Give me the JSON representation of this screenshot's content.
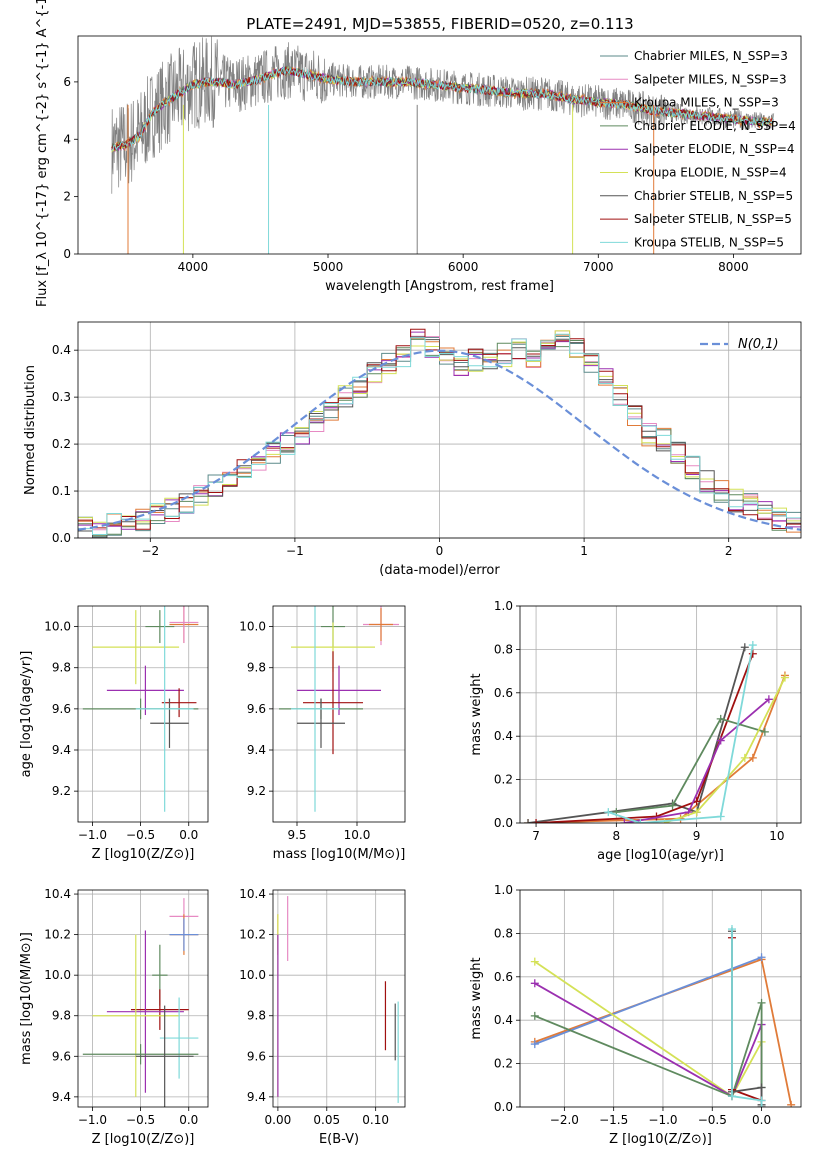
{
  "figure": {
    "title": "PLATE=2491, MJD=53855, FIBERID=0520, z=0.113"
  },
  "chart_data": [
    {
      "id": "spectrum",
      "type": "line",
      "xlabel": "wavelength [Angstrom, rest frame]",
      "ylabel": "Flux [f_λ 10^{-17} erg cm^{-2} s^{-1} A^{-1}]",
      "xlim": [
        3150,
        8500
      ],
      "ylim": [
        0,
        7.6
      ],
      "xticks": [
        4000,
        5000,
        6000,
        7000,
        8000
      ],
      "yticks": [
        0,
        2,
        4,
        6
      ],
      "grid": false,
      "legend_position": "top-right",
      "series": [
        {
          "name": "Chabrier MILES, N_SSP=3",
          "color": "#5b8a8a"
        },
        {
          "name": "Salpeter MILES, N_SSP=3",
          "color": "#e78ac3"
        },
        {
          "name": "Kroupa MILES, N_SSP=3",
          "color": "#e07b39"
        },
        {
          "name": "Chabrier ELODIE, N_SSP=4",
          "color": "#5f8a5f"
        },
        {
          "name": "Salpeter ELODIE, N_SSP=4",
          "color": "#9b30b0"
        },
        {
          "name": "Kroupa ELODIE, N_SSP=4",
          "color": "#d4e157"
        },
        {
          "name": "Chabrier STELIB, N_SSP=5",
          "color": "#555555"
        },
        {
          "name": "Salpeter STELIB, N_SSP=5",
          "color": "#a01010"
        },
        {
          "name": "Kroupa STELIB, N_SSP=5",
          "color": "#7fd9d9"
        }
      ],
      "continuum": {
        "x": [
          3400,
          3500,
          3600,
          3700,
          3800,
          3900,
          4000,
          4100,
          4200,
          4300,
          4400,
          4500,
          4600,
          4700,
          4800,
          4900,
          5000,
          5200,
          5400,
          5600,
          5800,
          6000,
          6200,
          6400,
          6600,
          6800,
          7000,
          7200,
          7400,
          7600,
          7800,
          8000,
          8200,
          8300
        ],
        "y": [
          3.7,
          3.8,
          4.1,
          4.9,
          5.3,
          5.6,
          5.9,
          6.0,
          6.0,
          5.9,
          6.0,
          6.1,
          6.3,
          6.4,
          6.3,
          6.2,
          6.1,
          6.0,
          6.0,
          6.0,
          5.9,
          5.8,
          5.7,
          5.6,
          5.6,
          5.4,
          5.3,
          5.2,
          5.0,
          4.9,
          4.8,
          4.7,
          4.6,
          4.6
        ]
      },
      "legend_title": ""
    },
    {
      "id": "residuals",
      "type": "bar",
      "xlabel": "(data-model)/error",
      "ylabel": "Normed distribution",
      "xlim": [
        -2.5,
        2.5
      ],
      "ylim": [
        0,
        0.46
      ],
      "xticks": [
        -2,
        -1,
        0,
        1,
        2
      ],
      "yticks": [
        0.0,
        0.1,
        0.2,
        0.3,
        0.4
      ],
      "grid": true,
      "legend_position": "top-right",
      "legend_label": "N(0,1)",
      "gauss_color": "#6a8fd8",
      "bin_edges_start": -2.5,
      "bin_width": 0.1,
      "hist": [
        0.02,
        0.025,
        0.03,
        0.035,
        0.04,
        0.05,
        0.06,
        0.07,
        0.09,
        0.11,
        0.13,
        0.15,
        0.16,
        0.18,
        0.2,
        0.22,
        0.25,
        0.27,
        0.3,
        0.32,
        0.35,
        0.37,
        0.39,
        0.42,
        0.41,
        0.38,
        0.37,
        0.38,
        0.37,
        0.39,
        0.4,
        0.38,
        0.41,
        0.42,
        0.4,
        0.37,
        0.34,
        0.3,
        0.26,
        0.22,
        0.21,
        0.18,
        0.15,
        0.12,
        0.1,
        0.08,
        0.07,
        0.06,
        0.04,
        0.03
      ],
      "series_colors": [
        "#5b8a8a",
        "#e78ac3",
        "#e07b39",
        "#5f8a5f",
        "#9b30b0",
        "#d4e157",
        "#555555",
        "#a01010",
        "#7fd9d9"
      ]
    },
    {
      "id": "age-vs-Z",
      "type": "scatter",
      "xlabel": "Z [log10(Z/Z⊙)]",
      "ylabel": "age [log10(age/yr)]",
      "xlim": [
        -1.15,
        0.2
      ],
      "ylim": [
        9.05,
        10.1
      ],
      "xticks": [
        -1.0,
        -0.5,
        0.0
      ],
      "yticks": [
        9.2,
        9.4,
        9.6,
        9.8,
        10.0
      ],
      "grid": true,
      "crosses": [
        {
          "x": -0.05,
          "y": 10.01,
          "xerr": 0.15,
          "yerr": 0.09,
          "color": "#e07b39"
        },
        {
          "x": -0.05,
          "y": 10.02,
          "xerr": 0.15,
          "yerr": 0.1,
          "color": "#e78ac3"
        },
        {
          "x": -0.3,
          "y": 10.0,
          "xerr": 0.15,
          "yerr": 0.08,
          "color": "#5f8a5f"
        },
        {
          "x": -0.55,
          "y": 9.9,
          "xerr": 0.45,
          "yerr": 0.18,
          "color": "#d4e157"
        },
        {
          "x": -0.45,
          "y": 9.69,
          "xerr": 0.4,
          "yerr": 0.12,
          "color": "#9b30b0"
        },
        {
          "x": -0.1,
          "y": 9.63,
          "xerr": 0.18,
          "yerr": 0.07,
          "color": "#a01010"
        },
        {
          "x": -0.5,
          "y": 9.6,
          "xerr": 0.6,
          "yerr": 0.05,
          "color": "#5f8a5f"
        },
        {
          "x": -0.2,
          "y": 9.53,
          "xerr": 0.2,
          "yerr": 0.12,
          "color": "#555555"
        },
        {
          "x": -0.25,
          "y": 9.6,
          "xerr": 0.3,
          "yerr": 0.5,
          "color": "#7fd9d9"
        }
      ]
    },
    {
      "id": "age-vs-mass",
      "type": "scatter",
      "xlabel": "mass [log10(M/M⊙)]",
      "ylabel": "",
      "xlim": [
        9.3,
        10.4
      ],
      "ylim": [
        9.05,
        10.1
      ],
      "xticks": [
        9.5,
        10.0
      ],
      "yticks": [
        9.2,
        9.4,
        9.6,
        9.8,
        10.0
      ],
      "grid": true,
      "crosses": [
        {
          "x": 10.2,
          "y": 10.01,
          "xerr": 0.15,
          "yerr": 0.1,
          "color": "#e78ac3"
        },
        {
          "x": 10.2,
          "y": 10.01,
          "xerr": 0.1,
          "yerr": 0.08,
          "color": "#e07b39"
        },
        {
          "x": 9.8,
          "y": 10.0,
          "xerr": 0.1,
          "yerr": 0.1,
          "color": "#5f8a5f"
        },
        {
          "x": 9.8,
          "y": 9.9,
          "xerr": 0.35,
          "yerr": 0.12,
          "color": "#d4e157"
        },
        {
          "x": 9.85,
          "y": 9.69,
          "xerr": 0.35,
          "yerr": 0.12,
          "color": "#9b30b0"
        },
        {
          "x": 9.8,
          "y": 9.63,
          "xerr": 0.25,
          "yerr": 0.25,
          "color": "#a01010"
        },
        {
          "x": 9.7,
          "y": 9.6,
          "xerr": 0.35,
          "yerr": 0.05,
          "color": "#5f8a5f"
        },
        {
          "x": 9.7,
          "y": 9.53,
          "xerr": 0.2,
          "yerr": 0.12,
          "color": "#555555"
        },
        {
          "x": 9.65,
          "y": 9.6,
          "xerr": 0.2,
          "yerr": 0.5,
          "color": "#7fd9d9"
        }
      ]
    },
    {
      "id": "mass-weight-vs-age",
      "type": "line",
      "xlabel": "age [log10(age/yr)]",
      "ylabel": "mass weight",
      "xlim": [
        6.8,
        10.3
      ],
      "ylim": [
        0,
        1.0
      ],
      "xticks": [
        7,
        8,
        9,
        10
      ],
      "yticks": [
        0.0,
        0.2,
        0.4,
        0.6,
        0.8,
        1.0
      ],
      "grid": true,
      "series": [
        {
          "color": "#e07b39",
          "x": [
            6.9,
            8.8,
            9.7,
            10.1
          ],
          "y": [
            0.0,
            0.02,
            0.3,
            0.68
          ]
        },
        {
          "color": "#555555",
          "x": [
            6.9,
            8.7,
            9.0,
            9.6
          ],
          "y": [
            0.0,
            0.09,
            0.05,
            0.81
          ]
        },
        {
          "color": "#a01010",
          "x": [
            7.0,
            8.5,
            9.0,
            9.7
          ],
          "y": [
            0.0,
            0.03,
            0.1,
            0.78
          ]
        },
        {
          "color": "#9b30b0",
          "x": [
            8.1,
            8.9,
            9.3,
            9.9
          ],
          "y": [
            0.0,
            0.05,
            0.38,
            0.57
          ]
        },
        {
          "color": "#5f8a5f",
          "x": [
            8.0,
            8.7,
            9.3,
            9.85
          ],
          "y": [
            0.05,
            0.08,
            0.48,
            0.42
          ]
        },
        {
          "color": "#d4e157",
          "x": [
            8.6,
            9.0,
            9.6,
            10.1
          ],
          "y": [
            0.0,
            0.05,
            0.3,
            0.67
          ]
        },
        {
          "color": "#7fd9d9",
          "x": [
            7.9,
            8.3,
            9.3,
            9.7
          ],
          "y": [
            0.05,
            0.0,
            0.03,
            0.82
          ]
        }
      ]
    },
    {
      "id": "mass-vs-Z",
      "type": "scatter",
      "xlabel": "Z [log10(Z/Z⊙)]",
      "ylabel": "mass [log10(M/M⊙)]",
      "xlim": [
        -1.15,
        0.2
      ],
      "ylim": [
        9.35,
        10.42
      ],
      "xticks": [
        -1.0,
        -0.5,
        0.0
      ],
      "yticks": [
        9.4,
        9.6,
        9.8,
        10.0,
        10.2,
        10.4
      ],
      "grid": true,
      "crosses": [
        {
          "x": -0.05,
          "y": 10.29,
          "xerr": 0.15,
          "yerr": 0.09,
          "color": "#e78ac3"
        },
        {
          "x": -0.05,
          "y": 10.2,
          "xerr": 0.15,
          "yerr": 0.1,
          "color": "#e07b39"
        },
        {
          "x": -0.05,
          "y": 10.2,
          "xerr": 0.15,
          "yerr": 0.08,
          "color": "#6a8fd8"
        },
        {
          "x": -0.3,
          "y": 10.0,
          "xerr": 0.08,
          "yerr": 0.15,
          "color": "#5f8a5f"
        },
        {
          "x": -0.3,
          "y": 9.83,
          "xerr": 0.3,
          "yerr": 0.1,
          "color": "#a01010"
        },
        {
          "x": -0.45,
          "y": 9.82,
          "xerr": 0.4,
          "yerr": 0.4,
          "color": "#9b30b0"
        },
        {
          "x": -0.55,
          "y": 9.8,
          "xerr": 0.45,
          "yerr": 0.4,
          "color": "#d4e157"
        },
        {
          "x": -0.1,
          "y": 9.69,
          "xerr": 0.2,
          "yerr": 0.2,
          "color": "#7fd9d9"
        },
        {
          "x": -0.5,
          "y": 9.61,
          "xerr": 0.6,
          "yerr": 0.05,
          "color": "#5f8a5f"
        },
        {
          "x": -0.25,
          "y": 9.6,
          "xerr": 0.3,
          "yerr": 0.25,
          "color": "#555555"
        }
      ]
    },
    {
      "id": "mass-vs-ebv",
      "type": "scatter",
      "xlabel": "E(B-V)",
      "ylabel": "",
      "xlim": [
        -0.005,
        0.13
      ],
      "ylim": [
        9.35,
        10.42
      ],
      "xticks": [
        0.0,
        0.05,
        0.1
      ],
      "xtick_labels": [
        "0.00",
        "0.05",
        "0.10"
      ],
      "yticks": [
        9.4,
        9.6,
        9.8,
        10.0,
        10.2,
        10.4
      ],
      "grid": true,
      "crosses": [
        {
          "x": 0.01,
          "y": 10.23,
          "xerr": 0.0,
          "yerr": 0.16,
          "color": "#e78ac3"
        },
        {
          "x": 0.0,
          "y": 10.2,
          "xerr": 0.0,
          "yerr": 0.1,
          "color": "#e07b39"
        },
        {
          "x": 0.0,
          "y": 9.85,
          "xerr": 0.0,
          "yerr": 0.45,
          "color": "#d4e157"
        },
        {
          "x": 0.0,
          "y": 9.8,
          "xerr": 0.0,
          "yerr": 0.4,
          "color": "#9b30b0"
        },
        {
          "x": 0.11,
          "y": 9.8,
          "xerr": 0.0,
          "yerr": 0.17,
          "color": "#a01010"
        },
        {
          "x": 0.12,
          "y": 9.72,
          "xerr": 0.0,
          "yerr": 0.14,
          "color": "#555555"
        },
        {
          "x": 0.123,
          "y": 9.62,
          "xerr": 0.0,
          "yerr": 0.25,
          "color": "#7fd9d9"
        }
      ]
    },
    {
      "id": "mass-weight-vs-Z",
      "type": "line",
      "xlabel": "Z [log10(Z/Z⊙)]",
      "ylabel": "mass weight",
      "xlim": [
        -2.45,
        0.4
      ],
      "ylim": [
        0,
        1.0
      ],
      "xticks": [
        -2.0,
        -1.5,
        -1.0,
        -0.5,
        0.0
      ],
      "yticks": [
        0.0,
        0.2,
        0.4,
        0.6,
        0.8,
        1.0
      ],
      "grid": true,
      "series": [
        {
          "color": "#e07b39",
          "x": [
            -2.3,
            0.0,
            0.3
          ],
          "y": [
            0.3,
            0.68,
            0.01
          ]
        },
        {
          "color": "#6a8fd8",
          "x": [
            -2.3,
            0.0
          ],
          "y": [
            0.29,
            0.69
          ]
        },
        {
          "color": "#d4e157",
          "x": [
            -2.3,
            -0.3,
            0.0,
            0.0
          ],
          "y": [
            0.67,
            0.05,
            0.3,
            0.0
          ]
        },
        {
          "color": "#9b30b0",
          "x": [
            -2.3,
            -0.3,
            0.0,
            0.0
          ],
          "y": [
            0.57,
            0.05,
            0.38,
            0.0
          ]
        },
        {
          "color": "#5f8a5f",
          "x": [
            -2.3,
            -0.3,
            0.0,
            0.0
          ],
          "y": [
            0.42,
            0.05,
            0.48,
            0.09
          ]
        },
        {
          "color": "#a01010",
          "x": [
            -0.3,
            -0.3,
            0.0,
            0.0
          ],
          "y": [
            0.78,
            0.08,
            0.03,
            0.0
          ]
        },
        {
          "color": "#555555",
          "x": [
            -0.3,
            -0.3,
            0.0,
            0.0
          ],
          "y": [
            0.81,
            0.07,
            0.09,
            0.01
          ]
        },
        {
          "color": "#7fd9d9",
          "x": [
            -0.3,
            -0.3,
            0.0,
            0.0
          ],
          "y": [
            0.82,
            0.05,
            0.03,
            0.0
          ]
        }
      ]
    }
  ]
}
